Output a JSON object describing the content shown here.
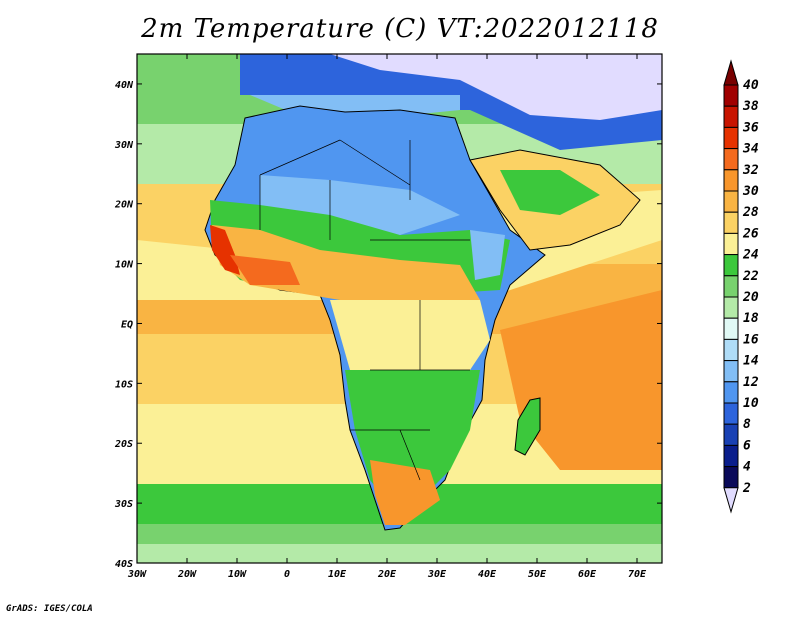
{
  "title": "2m Temperature (C) VT:2022012118",
  "credit": "GrADS: IGES/COLA",
  "map": {
    "lon_range": [
      -30,
      75
    ],
    "lat_range": [
      -40,
      45
    ],
    "lon_ticks": [
      {
        "value": -30,
        "label": "30W"
      },
      {
        "value": -20,
        "label": "20W"
      },
      {
        "value": -10,
        "label": "10W"
      },
      {
        "value": 0,
        "label": "0"
      },
      {
        "value": 10,
        "label": "10E"
      },
      {
        "value": 20,
        "label": "20E"
      },
      {
        "value": 30,
        "label": "30E"
      },
      {
        "value": 40,
        "label": "40E"
      },
      {
        "value": 50,
        "label": "50E"
      },
      {
        "value": 60,
        "label": "60E"
      },
      {
        "value": 70,
        "label": "70E"
      }
    ],
    "lat_ticks": [
      {
        "value": 40,
        "label": "40N"
      },
      {
        "value": 30,
        "label": "30N"
      },
      {
        "value": 20,
        "label": "20N"
      },
      {
        "value": 10,
        "label": "10N"
      },
      {
        "value": 0,
        "label": "EQ"
      },
      {
        "value": -10,
        "label": "10S"
      },
      {
        "value": -20,
        "label": "20S"
      },
      {
        "value": -30,
        "label": "30S"
      },
      {
        "value": -40,
        "label": "40S"
      }
    ]
  },
  "colorbar": {
    "levels": [
      "40",
      "38",
      "36",
      "34",
      "32",
      "30",
      "28",
      "26",
      "24",
      "22",
      "20",
      "18",
      "16",
      "14",
      "12",
      "10",
      "8",
      "6",
      "4",
      "2"
    ],
    "colors": [
      "#a00000",
      "#c81400",
      "#e63200",
      "#f46a1e",
      "#f8962c",
      "#f9b443",
      "#fbd264",
      "#fbf096",
      "#3cc83c",
      "#78d26e",
      "#b4eaa8",
      "#e1f9f5",
      "#afdcf7",
      "#82bef5",
      "#5096f0",
      "#2d64dc",
      "#1941b4",
      "#0a1e8c",
      "#0a0a5a"
    ],
    "top_arrow_color": "#780000",
    "bottom_arrow_color": "#e1dcff"
  },
  "colors": {
    "ocean_warm": "#f9b443",
    "land_cool": "#5096f0",
    "coastline": "#000000",
    "sub_freezing": "#e1dcff"
  }
}
